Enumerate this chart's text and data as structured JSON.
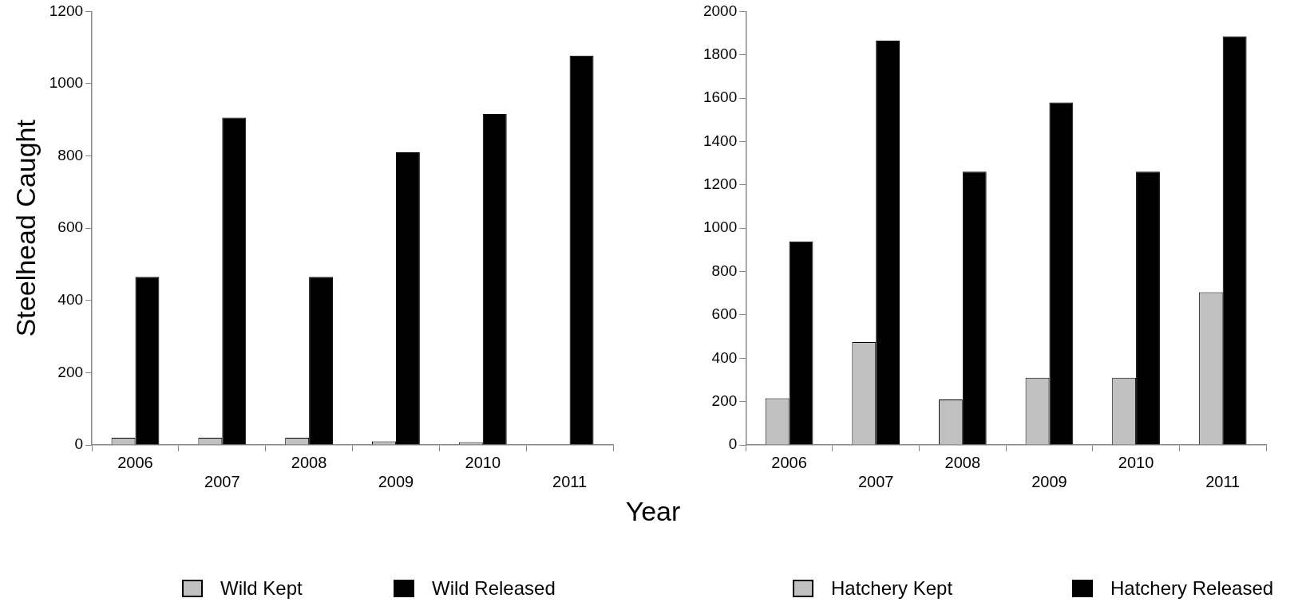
{
  "chart_data": [
    {
      "type": "bar",
      "ylabel": "Steelhead Caught",
      "xlabel": "Year",
      "categories": [
        "2006",
        "2007",
        "2008",
        "2009",
        "2010",
        "2011"
      ],
      "ylim": [
        0,
        1200
      ],
      "yticks": [
        0,
        200,
        400,
        600,
        800,
        1000,
        1200
      ],
      "grid": false,
      "legend": "bottom",
      "series": [
        {
          "name": "Wild Kept",
          "color": "#c0c0c0",
          "values": [
            20,
            20,
            20,
            10,
            8,
            0
          ]
        },
        {
          "name": "Wild Released",
          "color": "#000000",
          "values": [
            465,
            906,
            465,
            810,
            916,
            1078
          ]
        }
      ]
    },
    {
      "type": "bar",
      "categories": [
        "2006",
        "2007",
        "2008",
        "2009",
        "2010",
        "2011"
      ],
      "ylim": [
        0,
        2000
      ],
      "yticks": [
        0,
        200,
        400,
        600,
        800,
        1000,
        1200,
        1400,
        1600,
        1800,
        2000
      ],
      "grid": false,
      "legend": "bottom",
      "series": [
        {
          "name": "Hatchery Kept",
          "color": "#c0c0c0",
          "values": [
            215,
            475,
            210,
            310,
            310,
            705
          ]
        },
        {
          "name": "Hatchery Released",
          "color": "#000000",
          "values": [
            939,
            1865,
            1261,
            1580,
            1261,
            1886
          ]
        }
      ]
    }
  ]
}
